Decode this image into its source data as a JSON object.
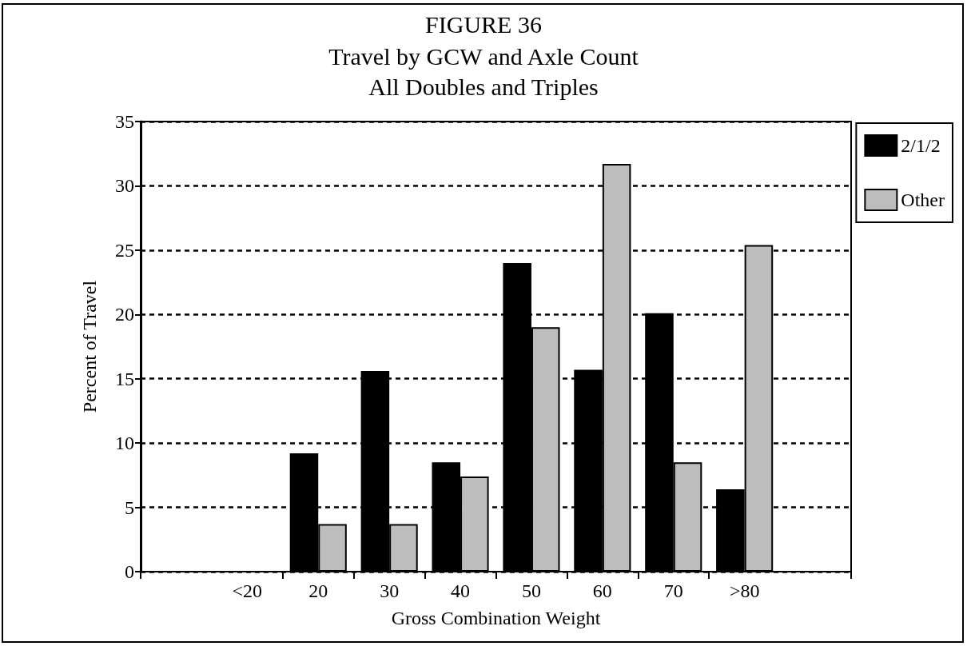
{
  "chart_data": {
    "type": "bar",
    "title": "FIGURE 36",
    "subtitle": "Travel by GCW and Axle Count\nAll Doubles and Triples",
    "xlabel": "Gross Combination Weight",
    "ylabel": "Percent of Travel",
    "categories": [
      null,
      "<20",
      "20",
      "30",
      "40",
      "50",
      "60",
      "70",
      ">80",
      null
    ],
    "series": [
      {
        "name": "2/1/2",
        "color": "#000000",
        "values": [
          null,
          null,
          9.2,
          15.6,
          8.5,
          24.0,
          15.7,
          20.1,
          6.4,
          null
        ]
      },
      {
        "name": "Other",
        "color": "#bdbdbd",
        "values": [
          null,
          null,
          3.7,
          3.7,
          7.4,
          19.0,
          31.7,
          8.5,
          25.4,
          null
        ]
      }
    ],
    "ylim": [
      0,
      35
    ],
    "yticks": [
      0,
      5,
      10,
      15,
      20,
      25,
      30,
      35
    ],
    "grid": "y",
    "legend": "top right"
  }
}
